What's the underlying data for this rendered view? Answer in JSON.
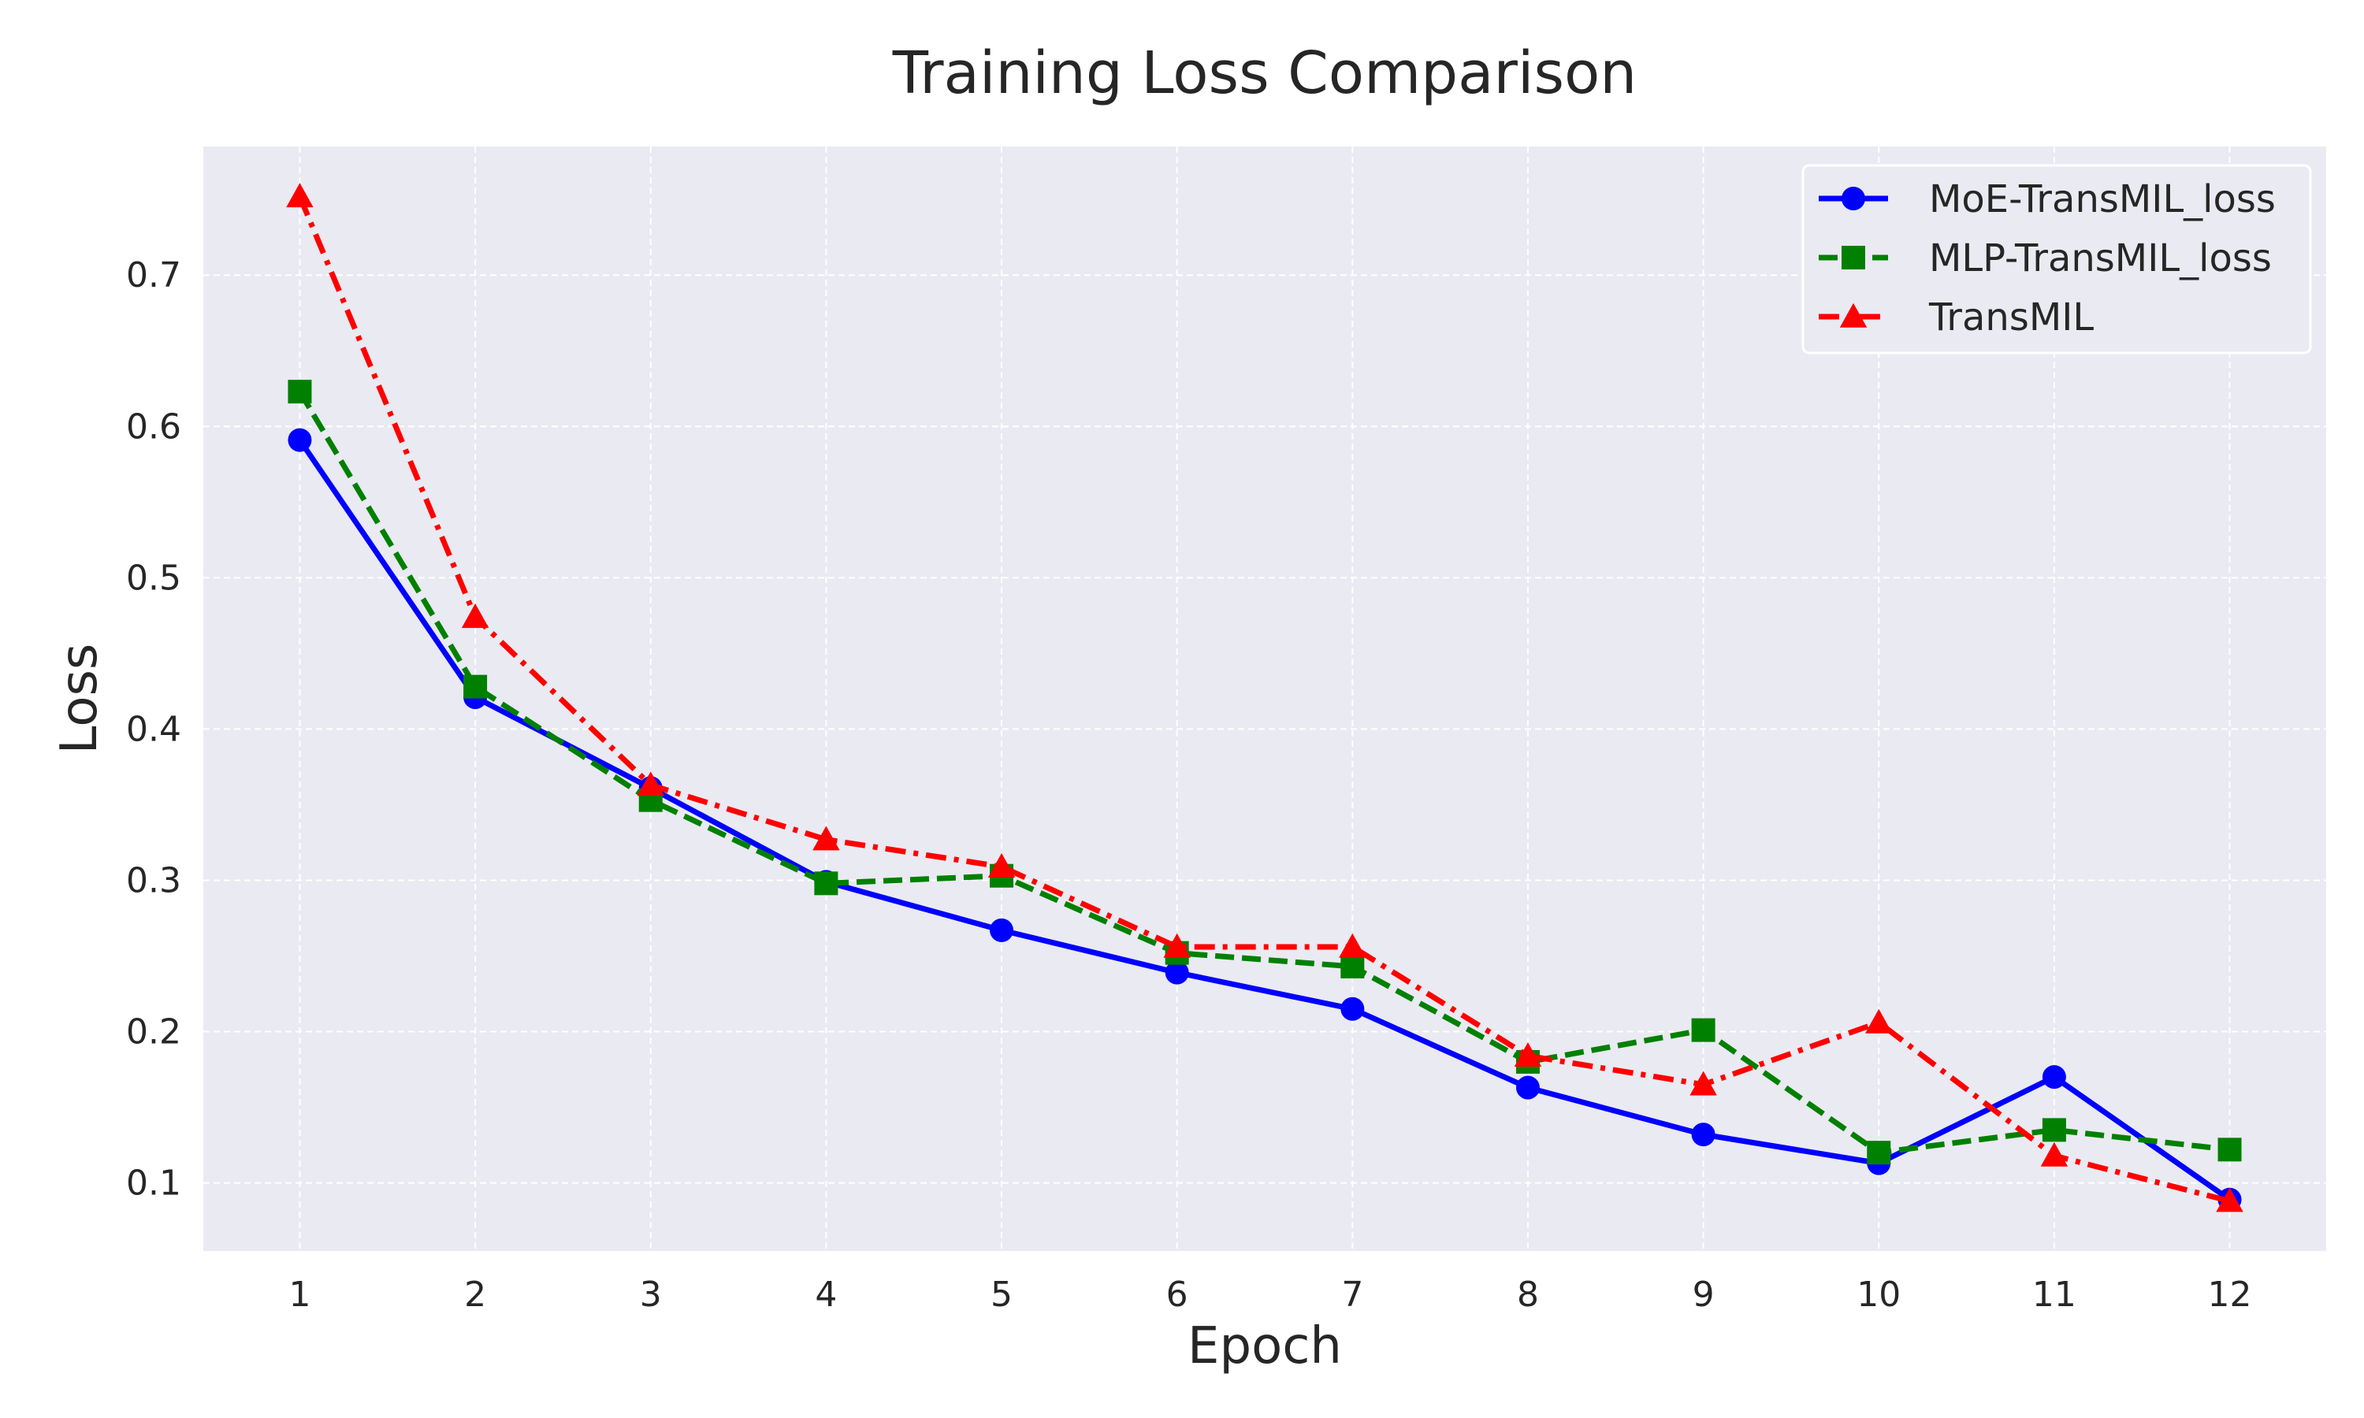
{
  "chart_data": {
    "type": "line",
    "title": "Training Loss Comparison",
    "xlabel": "Epoch",
    "ylabel": "Loss",
    "x": [
      1,
      2,
      3,
      4,
      5,
      6,
      7,
      8,
      9,
      10,
      11,
      12
    ],
    "ylim": [
      0.055,
      0.785
    ],
    "xlim": [
      0.45,
      12.55
    ],
    "yticks": [
      0.1,
      0.2,
      0.3,
      0.4,
      0.5,
      0.6,
      0.7
    ],
    "grid": true,
    "background": "#eaeaf2",
    "legend_position": "top-right",
    "series": [
      {
        "name": "MoE-TransMIL_loss",
        "color": "#0000ff",
        "linestyle": "solid",
        "marker": "circle",
        "values": [
          0.591,
          0.421,
          0.361,
          0.299,
          0.267,
          0.239,
          0.215,
          0.163,
          0.132,
          0.113,
          0.17,
          0.089
        ]
      },
      {
        "name": "MLP-TransMIL_loss",
        "color": "#008000",
        "linestyle": "dashed",
        "marker": "square",
        "values": [
          0.623,
          0.428,
          0.353,
          0.298,
          0.303,
          0.252,
          0.243,
          0.18,
          0.201,
          0.12,
          0.135,
          0.122
        ]
      },
      {
        "name": "TransMIL",
        "color": "#ff0000",
        "linestyle": "dashdot",
        "marker": "triangle",
        "values": [
          0.752,
          0.474,
          0.363,
          0.327,
          0.309,
          0.256,
          0.256,
          0.184,
          0.165,
          0.206,
          0.118,
          0.088
        ]
      }
    ]
  }
}
